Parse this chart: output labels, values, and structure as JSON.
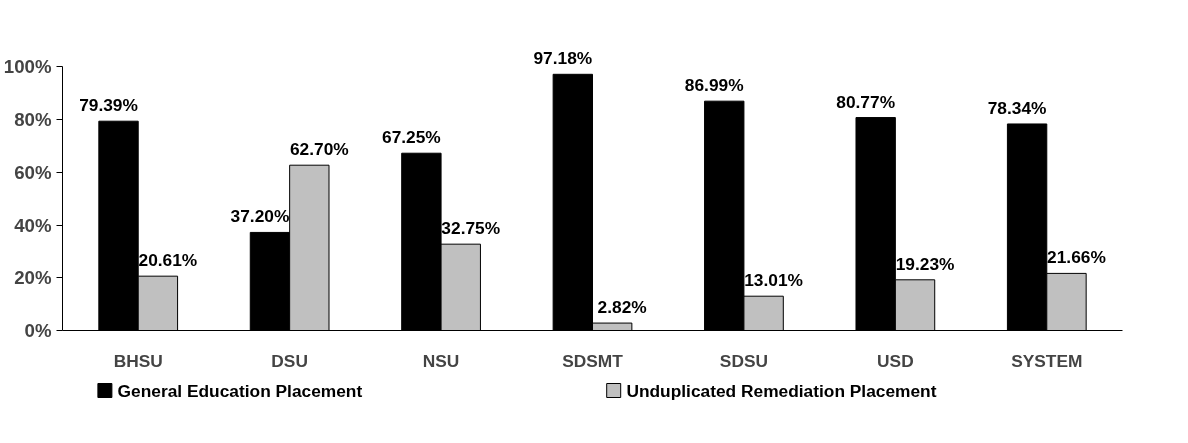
{
  "chart_data": {
    "type": "bar",
    "categories": [
      "BHSU",
      "DSU",
      "NSU",
      "SDSMT",
      "SDSU",
      "USD",
      "SYSTEM"
    ],
    "series": [
      {
        "name": "General Education Placement",
        "color": "#000000",
        "values": [
          79.39,
          37.2,
          67.25,
          97.18,
          86.99,
          80.77,
          78.34
        ],
        "value_labels": [
          "79.39%",
          "37.20%",
          "67.25%",
          "97.18%",
          "86.99%",
          "80.77%",
          "78.34%"
        ]
      },
      {
        "name": "Unduplicated Remediation Placement",
        "color": "#c0c0c0",
        "values": [
          20.61,
          62.7,
          32.75,
          2.82,
          13.01,
          19.23,
          21.66
        ],
        "value_labels": [
          "20.61%",
          "62.70%",
          "32.75%",
          "2.82%",
          "13.01%",
          "19.23%",
          "21.66%"
        ]
      }
    ],
    "ylim": [
      0,
      100
    ],
    "yticks": [
      {
        "value": 0,
        "label": "0%"
      },
      {
        "value": 20,
        "label": "20%"
      },
      {
        "value": 40,
        "label": "40%"
      },
      {
        "value": 60,
        "label": "60%"
      },
      {
        "value": 80,
        "label": "80%"
      },
      {
        "value": 100,
        "label": "100%"
      }
    ],
    "grid": false,
    "legend": "bottom"
  }
}
